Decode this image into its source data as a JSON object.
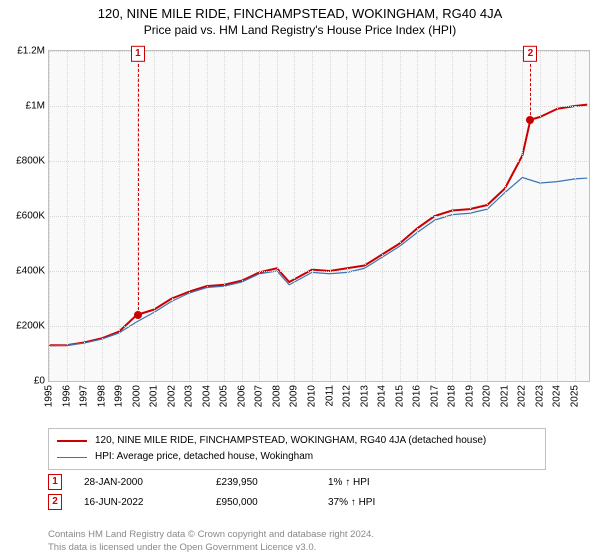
{
  "title": "120, NINE MILE RIDE, FINCHAMPSTEAD, WOKINGHAM, RG40 4JA",
  "subtitle": "Price paid vs. HM Land Registry's House Price Index (HPI)",
  "chart": {
    "type": "line",
    "background_color": "#f9f9f9",
    "grid_color": "#d8d8d8",
    "border_color": "#c0c0c0",
    "ylim": [
      0,
      1200000
    ],
    "ytick_step": 200000,
    "yticks": [
      "£0",
      "£200K",
      "£400K",
      "£600K",
      "£800K",
      "£1M",
      "£1.2M"
    ],
    "xlim": [
      1995,
      2025.8
    ],
    "xticks": [
      1995,
      1996,
      1997,
      1998,
      1999,
      2000,
      2001,
      2002,
      2003,
      2004,
      2005,
      2006,
      2007,
      2008,
      2009,
      2010,
      2011,
      2012,
      2013,
      2014,
      2015,
      2016,
      2017,
      2018,
      2019,
      2020,
      2021,
      2022,
      2023,
      2024,
      2025
    ],
    "series": [
      {
        "name": "address",
        "label": "120, NINE MILE RIDE, FINCHAMPSTEAD, WOKINGHAM, RG40 4JA (detached house)",
        "color": "#cc0000",
        "line_width": 2,
        "data": [
          [
            1995,
            130000
          ],
          [
            1996,
            130000
          ],
          [
            1997,
            140000
          ],
          [
            1998,
            155000
          ],
          [
            1999,
            180000
          ],
          [
            2000,
            239950
          ],
          [
            2001,
            260000
          ],
          [
            2002,
            300000
          ],
          [
            2003,
            325000
          ],
          [
            2004,
            345000
          ],
          [
            2005,
            350000
          ],
          [
            2006,
            365000
          ],
          [
            2007,
            395000
          ],
          [
            2008,
            410000
          ],
          [
            2008.7,
            360000
          ],
          [
            2009,
            370000
          ],
          [
            2010,
            405000
          ],
          [
            2011,
            400000
          ],
          [
            2012,
            410000
          ],
          [
            2013,
            420000
          ],
          [
            2014,
            460000
          ],
          [
            2015,
            500000
          ],
          [
            2016,
            555000
          ],
          [
            2017,
            600000
          ],
          [
            2018,
            620000
          ],
          [
            2019,
            625000
          ],
          [
            2020,
            640000
          ],
          [
            2021,
            700000
          ],
          [
            2022,
            820000
          ],
          [
            2022.46,
            950000
          ],
          [
            2023,
            960000
          ],
          [
            2024,
            990000
          ],
          [
            2025,
            1000000
          ],
          [
            2025.7,
            1005000
          ]
        ]
      },
      {
        "name": "hpi",
        "label": "HPI: Average price, detached house, Wokingham",
        "color": "#3b74b5",
        "line_width": 1.2,
        "data": [
          [
            1995,
            128000
          ],
          [
            1996,
            130000
          ],
          [
            1997,
            138000
          ],
          [
            1998,
            152000
          ],
          [
            1999,
            175000
          ],
          [
            2000,
            215000
          ],
          [
            2001,
            250000
          ],
          [
            2002,
            290000
          ],
          [
            2003,
            320000
          ],
          [
            2004,
            340000
          ],
          [
            2005,
            345000
          ],
          [
            2006,
            360000
          ],
          [
            2007,
            390000
          ],
          [
            2008,
            400000
          ],
          [
            2008.7,
            350000
          ],
          [
            2009,
            360000
          ],
          [
            2010,
            395000
          ],
          [
            2011,
            390000
          ],
          [
            2012,
            395000
          ],
          [
            2013,
            410000
          ],
          [
            2014,
            450000
          ],
          [
            2015,
            490000
          ],
          [
            2016,
            540000
          ],
          [
            2017,
            585000
          ],
          [
            2018,
            605000
          ],
          [
            2019,
            610000
          ],
          [
            2020,
            625000
          ],
          [
            2021,
            685000
          ],
          [
            2022,
            740000
          ],
          [
            2023,
            720000
          ],
          [
            2024,
            725000
          ],
          [
            2025,
            735000
          ],
          [
            2025.7,
            738000
          ]
        ]
      }
    ],
    "markers": [
      {
        "idx": "1",
        "x": 2000.07,
        "y": 239950,
        "dot_color": "#cc0000"
      },
      {
        "idx": "2",
        "x": 2022.46,
        "y": 950000,
        "dot_color": "#cc0000"
      }
    ]
  },
  "legend": {
    "items": [
      {
        "color": "#cc0000",
        "width": 2,
        "key": "address"
      },
      {
        "color": "#3b74b5",
        "width": 1.5,
        "key": "hpi"
      }
    ]
  },
  "sales": [
    {
      "idx": "1",
      "date": "28-JAN-2000",
      "price": "£239,950",
      "pct": "1% ↑ HPI"
    },
    {
      "idx": "2",
      "date": "16-JUN-2022",
      "price": "£950,000",
      "pct": "37% ↑ HPI"
    }
  ],
  "footer": {
    "line1": "Contains HM Land Registry data © Crown copyright and database right 2024.",
    "line2": "This data is licensed under the Open Government Licence v3.0."
  }
}
